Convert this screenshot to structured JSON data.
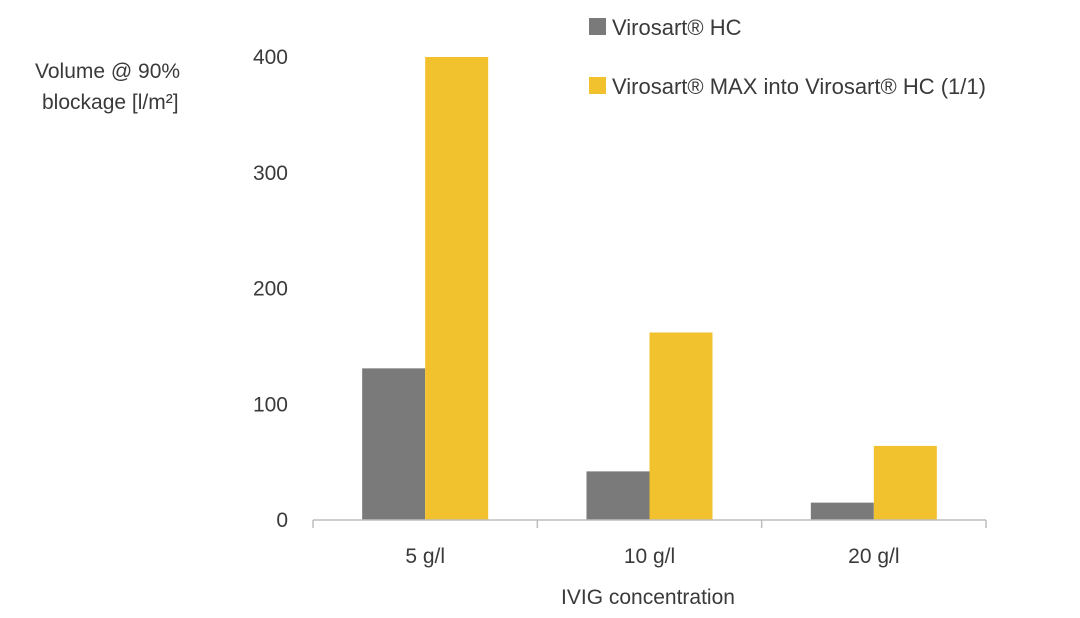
{
  "colors": {
    "series_1": "#7a7a7a",
    "series_2": "#f2c12e",
    "axis": "#bdbdbd",
    "text": "#3a3a3a",
    "background": "#ffffff"
  },
  "chart_data": {
    "type": "bar",
    "title": "",
    "ylabel_lines": [
      "Volume @ 90%",
      "blockage [l/m²]"
    ],
    "xlabel": "IVIG concentration",
    "categories": [
      "5 g/l",
      "10 g/l",
      "20 g/l"
    ],
    "series": [
      {
        "name": "Virosart® HC",
        "values": [
          131,
          42,
          15
        ]
      },
      {
        "name": "Virosart® MAX into Virosart® HC (1/1)",
        "values": [
          400,
          162,
          64
        ]
      }
    ],
    "ylim": [
      0,
      400
    ],
    "yticks": [
      0,
      100,
      200,
      300,
      400
    ],
    "grid": false,
    "legend_position": "top-right"
  }
}
